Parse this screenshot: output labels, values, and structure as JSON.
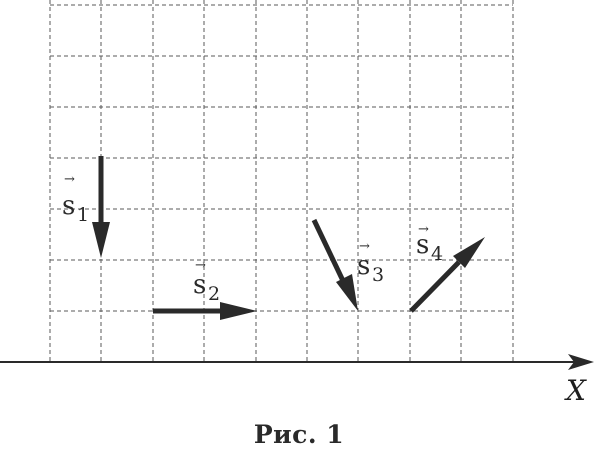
{
  "figure": {
    "caption": "Рис. 1",
    "axis_label": "X",
    "grid_color": "#5a5a5a",
    "ink_color": "#2a2a2a",
    "vectors": [
      {
        "id": "s1",
        "base": "s",
        "index": "1",
        "arrow_mark": "→"
      },
      {
        "id": "s2",
        "base": "s",
        "index": "2",
        "arrow_mark": "→"
      },
      {
        "id": "s3",
        "base": "s",
        "index": "3",
        "arrow_mark": "→"
      },
      {
        "id": "s4",
        "base": "s",
        "index": "4",
        "arrow_mark": "→"
      }
    ]
  }
}
